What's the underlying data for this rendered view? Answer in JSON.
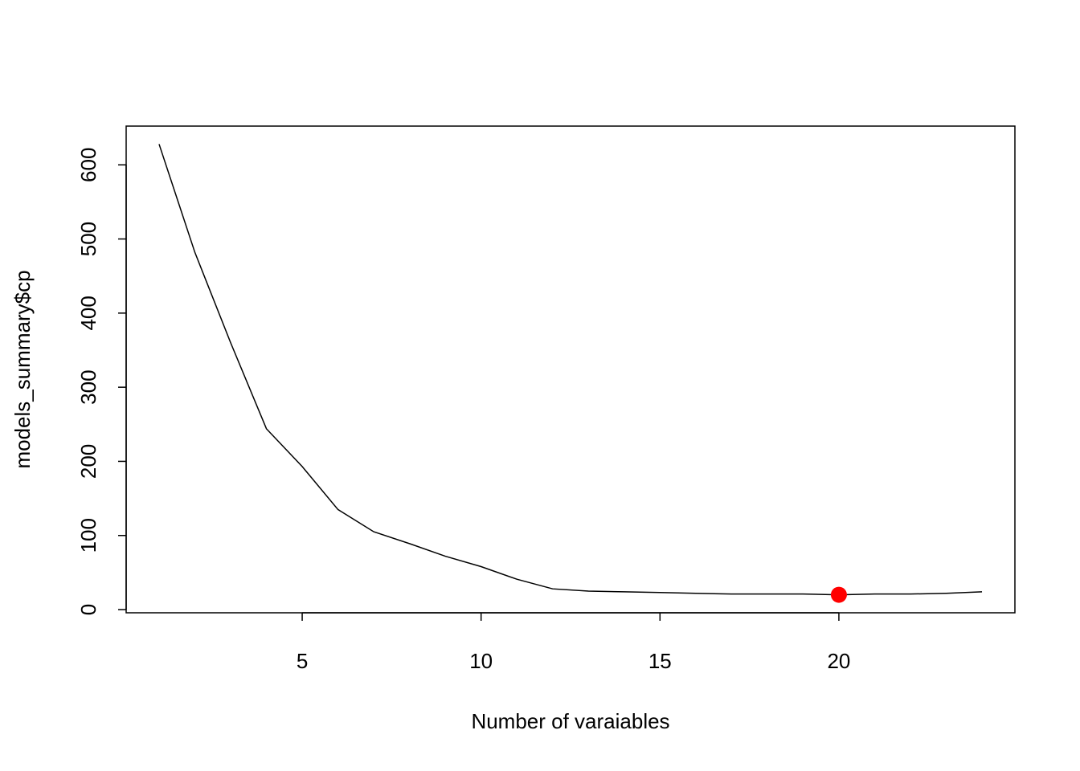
{
  "chart_data": {
    "type": "line",
    "x_label": "Number of varaiables",
    "y_label": "models_summary$cp",
    "x": [
      1,
      2,
      3,
      4,
      5,
      6,
      7,
      8,
      9,
      10,
      11,
      12,
      13,
      14,
      15,
      16,
      17,
      18,
      19,
      20,
      21,
      22,
      23,
      24
    ],
    "series": [
      {
        "color": "#000000",
        "style": "line",
        "values": [
          628,
          482,
          360,
          244,
          193,
          135,
          105,
          89,
          72,
          58,
          41,
          28,
          25,
          24,
          23,
          22,
          21,
          21,
          21,
          20,
          21,
          21,
          22,
          24
        ]
      },
      {
        "color": "#ff0000",
        "style": "point",
        "x": [
          20
        ],
        "values": [
          20
        ]
      }
    ],
    "xlim": [
      0.08,
      24.92
    ],
    "xticks": [
      5,
      10,
      15,
      20
    ],
    "ylim": [
      -4.3,
      652.3
    ],
    "yticks": [
      0,
      100,
      200,
      300,
      400,
      500,
      600
    ],
    "grid": false
  }
}
